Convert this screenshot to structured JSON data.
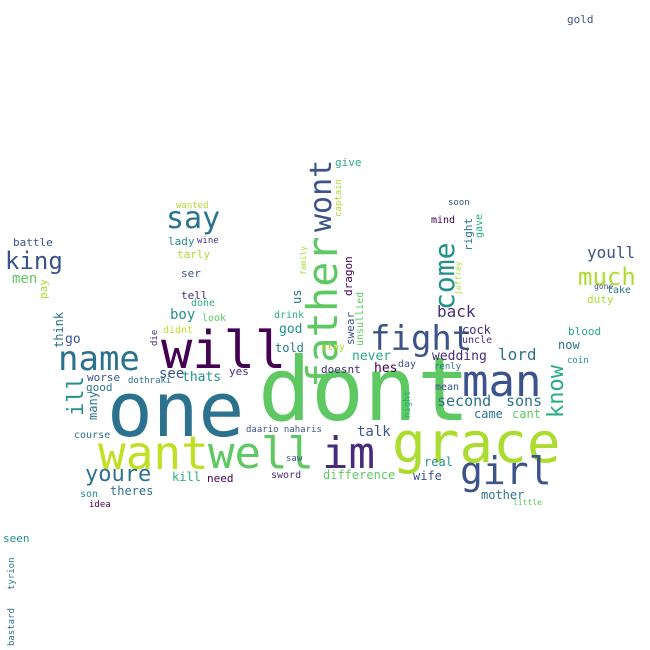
{
  "palette": {
    "purple": "#440154",
    "indigo": "#472c7a",
    "blue": "#3b528b",
    "steel": "#2c728e",
    "teal": "#21918c",
    "sea": "#28ae80",
    "green": "#5ec962",
    "lime": "#addc30",
    "yellow": "#fde725"
  },
  "words": [
    {
      "text": "dont",
      "color": "#5ec962"
    },
    {
      "text": "one",
      "color": "#2c728e"
    },
    {
      "text": "will",
      "color": "#440154"
    },
    {
      "text": "grace",
      "color": "#addc30"
    },
    {
      "text": "want",
      "color": "#c2df23"
    },
    {
      "text": "well",
      "color": "#5ec962"
    },
    {
      "text": "im",
      "color": "#472c7a"
    },
    {
      "text": "man",
      "color": "#3b528b"
    },
    {
      "text": "father",
      "color": "#5ec962"
    },
    {
      "text": "name",
      "color": "#2c728e"
    },
    {
      "text": "fight",
      "color": "#3b528b"
    },
    {
      "text": "girl",
      "color": "#3b528b"
    },
    {
      "text": "wont",
      "color": "#3b528b"
    },
    {
      "text": "say",
      "color": "#2c728e"
    },
    {
      "text": "come",
      "color": "#21918c"
    },
    {
      "text": "youre",
      "color": "#2c728e"
    },
    {
      "text": "know",
      "color": "#28ae80"
    },
    {
      "text": "much",
      "color": "#addc30"
    },
    {
      "text": "king",
      "color": "#3b528b"
    },
    {
      "text": "ill",
      "color": "#21918c"
    },
    {
      "text": "back",
      "color": "#472c7a"
    },
    {
      "text": "second",
      "color": "#2c728e"
    },
    {
      "text": "sons",
      "color": "#2c728e"
    },
    {
      "text": "lord",
      "color": "#2c728e"
    },
    {
      "text": "youll",
      "color": "#3b528b"
    },
    {
      "text": "men",
      "color": "#5ec962"
    },
    {
      "text": "boy",
      "color": "#21918c"
    },
    {
      "text": "see",
      "color": "#3b528b"
    },
    {
      "text": "thats",
      "color": "#21918c"
    },
    {
      "text": "talk",
      "color": "#3b528b"
    },
    {
      "text": "wedding",
      "color": "#472c7a"
    },
    {
      "text": "never",
      "color": "#28ae80"
    },
    {
      "text": "hes",
      "color": "#440154"
    },
    {
      "text": "god",
      "color": "#21918c"
    },
    {
      "text": "told",
      "color": "#2c728e"
    },
    {
      "text": "cock",
      "color": "#472c7a"
    },
    {
      "text": "came",
      "color": "#2c728e"
    },
    {
      "text": "cant",
      "color": "#5ec962"
    },
    {
      "text": "now",
      "color": "#2c728e"
    },
    {
      "text": "girl",
      "color": "#3b528b"
    },
    {
      "text": "difference",
      "color": "#5ec962"
    },
    {
      "text": "wife",
      "color": "#3b528b"
    },
    {
      "text": "real",
      "color": "#21918c"
    },
    {
      "text": "mother",
      "color": "#2c728e"
    },
    {
      "text": "theres",
      "color": "#2c728e"
    },
    {
      "text": "kill",
      "color": "#28ae80"
    },
    {
      "text": "need",
      "color": "#440154"
    },
    {
      "text": "sword",
      "color": "#472c7a"
    },
    {
      "text": "many",
      "color": "#2c728e"
    },
    {
      "text": "worse",
      "color": "#3b528b"
    },
    {
      "text": "good",
      "color": "#2c728e"
    },
    {
      "text": "course",
      "color": "#2c728e"
    },
    {
      "text": "son",
      "color": "#21918c"
    },
    {
      "text": "idea",
      "color": "#440154"
    },
    {
      "text": "think",
      "color": "#2c728e"
    },
    {
      "text": "go",
      "color": "#3b528b"
    },
    {
      "text": "pay",
      "color": "#addc30"
    },
    {
      "text": "battle",
      "color": "#3b528b"
    },
    {
      "text": "lady",
      "color": "#21918c"
    },
    {
      "text": "tarly",
      "color": "#addc30"
    },
    {
      "text": "wine",
      "color": "#472c7a"
    },
    {
      "text": "wanted",
      "color": "#addc30"
    },
    {
      "text": "ser",
      "color": "#3b528b"
    },
    {
      "text": "tell",
      "color": "#472c7a"
    },
    {
      "text": "done",
      "color": "#28ae80"
    },
    {
      "text": "look",
      "color": "#5ec962"
    },
    {
      "text": "didnt",
      "color": "#c2df23"
    },
    {
      "text": "die",
      "color": "#472c7a"
    },
    {
      "text": "dothraki",
      "color": "#2c728e"
    },
    {
      "text": "yes",
      "color": "#472c7a"
    },
    {
      "text": "daario naharis",
      "color": "#3b528b"
    },
    {
      "text": "saw",
      "color": "#3b528b"
    },
    {
      "text": "drink",
      "color": "#28ae80"
    },
    {
      "text": "stay",
      "color": "#addc30"
    },
    {
      "text": "us",
      "color": "#2c728e"
    },
    {
      "text": "doesnt",
      "color": "#472c7a"
    },
    {
      "text": "swear",
      "color": "#3b528b"
    },
    {
      "text": "unsullied",
      "color": "#5ec962"
    },
    {
      "text": "dragon",
      "color": "#440154"
    },
    {
      "text": "family",
      "color": "#addc30"
    },
    {
      "text": "captain",
      "color": "#addc30"
    },
    {
      "text": "give",
      "color": "#28ae80"
    },
    {
      "text": "day",
      "color": "#3b528b"
    },
    {
      "text": "night",
      "color": "#28ae80"
    },
    {
      "text": "renly",
      "color": "#2c728e"
    },
    {
      "text": "mean",
      "color": "#3b528b"
    },
    {
      "text": "mind",
      "color": "#440154"
    },
    {
      "text": "soon",
      "color": "#3b528b"
    },
    {
      "text": "right",
      "color": "#2c728e"
    },
    {
      "text": "gave",
      "color": "#28ae80"
    },
    {
      "text": "joffrey",
      "color": "#addc30"
    },
    {
      "text": "uncle",
      "color": "#472c7a"
    },
    {
      "text": "gone",
      "color": "#3b528b"
    },
    {
      "text": "take",
      "color": "#2c728e"
    },
    {
      "text": "duty",
      "color": "#addc30"
    },
    {
      "text": "blood",
      "color": "#28ae80"
    },
    {
      "text": "coin",
      "color": "#21918c"
    },
    {
      "text": "little",
      "color": "#5ec962"
    },
    {
      "text": "gold",
      "color": "#3b528b"
    },
    {
      "text": "seen",
      "color": "#21918c"
    },
    {
      "text": "tyrion",
      "color": "#2c728e"
    },
    {
      "text": "bastard",
      "color": "#2c728e"
    }
  ]
}
